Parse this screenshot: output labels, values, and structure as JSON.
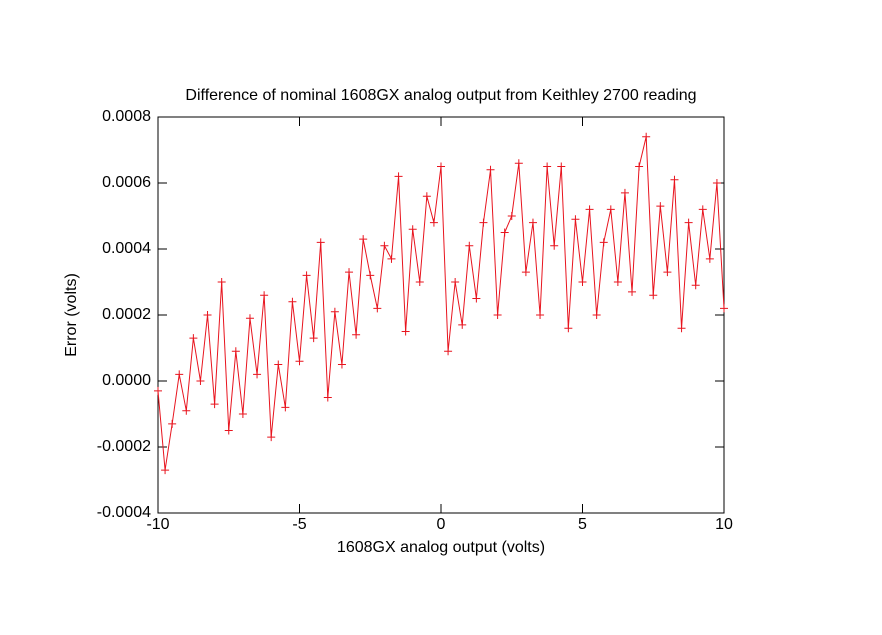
{
  "chart_data": {
    "type": "line",
    "title": "Difference of nominal 1608GX analog output from Keithley 2700 reading",
    "xlabel": "1608GX analog output (volts)",
    "ylabel": "Error (volts)",
    "x": [
      -10,
      -9.75,
      -9.5,
      -9.25,
      -9,
      -8.75,
      -8.5,
      -8.25,
      -8,
      -7.75,
      -7.5,
      -7.25,
      -7,
      -6.75,
      -6.5,
      -6.25,
      -6,
      -5.75,
      -5.5,
      -5.25,
      -5,
      -4.75,
      -4.5,
      -4.25,
      -4,
      -3.75,
      -3.5,
      -3.25,
      -3,
      -2.75,
      -2.5,
      -2.25,
      -2,
      -1.75,
      -1.5,
      -1.25,
      -1,
      -0.75,
      -0.5,
      -0.25,
      0,
      0.25,
      0.5,
      0.75,
      1,
      1.25,
      1.5,
      1.75,
      2,
      2.25,
      2.5,
      2.75,
      3,
      3.25,
      3.5,
      3.75,
      4,
      4.25,
      4.5,
      4.75,
      5,
      5.25,
      5.5,
      5.75,
      6,
      6.25,
      6.5,
      6.75,
      7,
      7.25,
      7.5,
      7.75,
      8,
      8.25,
      8.5,
      8.75,
      9,
      9.25,
      9.5,
      9.75,
      10
    ],
    "values": [
      -3e-05,
      -0.00027,
      -0.00013,
      2e-05,
      -9e-05,
      0.00013,
      0.0,
      0.0002,
      -7e-05,
      0.0003,
      -0.00015,
      9e-05,
      -0.0001,
      0.00019,
      2e-05,
      0.00026,
      -0.00017,
      5e-05,
      -8e-05,
      0.00024,
      6e-05,
      0.00032,
      0.00013,
      0.00042,
      -5e-05,
      0.00021,
      5e-05,
      0.00033,
      0.00014,
      0.00043,
      0.00032,
      0.00022,
      0.00041,
      0.00037,
      0.00062,
      0.00015,
      0.00046,
      0.0003,
      0.00056,
      0.00048,
      0.00065,
      9e-05,
      0.0003,
      0.00017,
      0.00041,
      0.00025,
      0.00048,
      0.00064,
      0.0002,
      0.00045,
      0.0005,
      0.00066,
      0.00033,
      0.00048,
      0.0002,
      0.00065,
      0.00041,
      0.00065,
      0.00016,
      0.00049,
      0.0003,
      0.00052,
      0.0002,
      0.00042,
      0.00052,
      0.0003,
      0.00057,
      0.00027,
      0.00065,
      0.00074,
      0.00026,
      0.00053,
      0.00033,
      0.00061,
      0.00016,
      0.00048,
      0.00029,
      0.00052,
      0.00037,
      0.0006,
      0.00022
    ],
    "color": "#e8141e",
    "xlim": [
      -10,
      10
    ],
    "xticks": [
      -10,
      -5,
      0,
      5,
      10
    ],
    "ylim": [
      -0.0004,
      0.0008
    ],
    "yticks": [
      -0.0004,
      -0.0002,
      {
        "value": 0,
        "label": "0.0000"
      },
      0.0002,
      0.0004,
      0.0006,
      0.0008
    ]
  }
}
